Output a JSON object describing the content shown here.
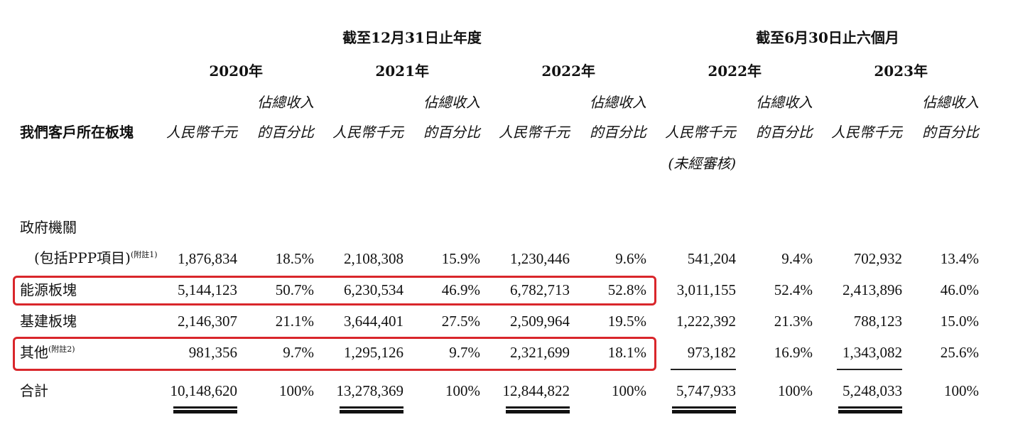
{
  "header": {
    "period_annual": "截至12月31日止年度",
    "period_six_months": "截至6月30日止六個月",
    "years": [
      "2020年",
      "2021年",
      "2022年",
      "2022年",
      "2023年"
    ],
    "segment_label": "我們客戶所在板塊",
    "amount_label": "人民幣千元",
    "pct_label_line1": "佔總收入",
    "pct_label_line2": "的百分比",
    "unaudited_label": "(未經審核)"
  },
  "rows": [
    {
      "label": "政府機關",
      "label_line2": "(包括PPP項目)",
      "note": "(附註1)",
      "values": [
        "1,876,834",
        "18.5%",
        "2,108,308",
        "15.9%",
        "1,230,446",
        "9.6%",
        "541,204",
        "9.4%",
        "702,932",
        "13.4%"
      ],
      "highlighted": false
    },
    {
      "label": "能源板塊",
      "values": [
        "5,144,123",
        "50.7%",
        "6,230,534",
        "46.9%",
        "6,782,713",
        "52.8%",
        "3,011,155",
        "52.4%",
        "2,413,896",
        "46.0%"
      ],
      "highlighted": true
    },
    {
      "label": "基建板塊",
      "values": [
        "2,146,307",
        "21.1%",
        "3,644,401",
        "27.5%",
        "2,509,964",
        "19.5%",
        "1,222,392",
        "21.3%",
        "788,123",
        "15.0%"
      ],
      "highlighted": false
    },
    {
      "label": "其他",
      "note": "(附註2)",
      "values": [
        "981,356",
        "9.7%",
        "1,295,126",
        "9.7%",
        "2,321,699",
        "18.1%",
        "973,182",
        "16.9%",
        "1,343,082",
        "25.6%"
      ],
      "highlighted": true
    }
  ],
  "total": {
    "label": "合計",
    "values": [
      "10,148,620",
      "100%",
      "13,278,369",
      "100%",
      "12,844,822",
      "100%",
      "5,747,933",
      "100%",
      "5,248,033",
      "100%"
    ]
  },
  "colors": {
    "highlight": "#d9262b",
    "text": "#111111"
  }
}
